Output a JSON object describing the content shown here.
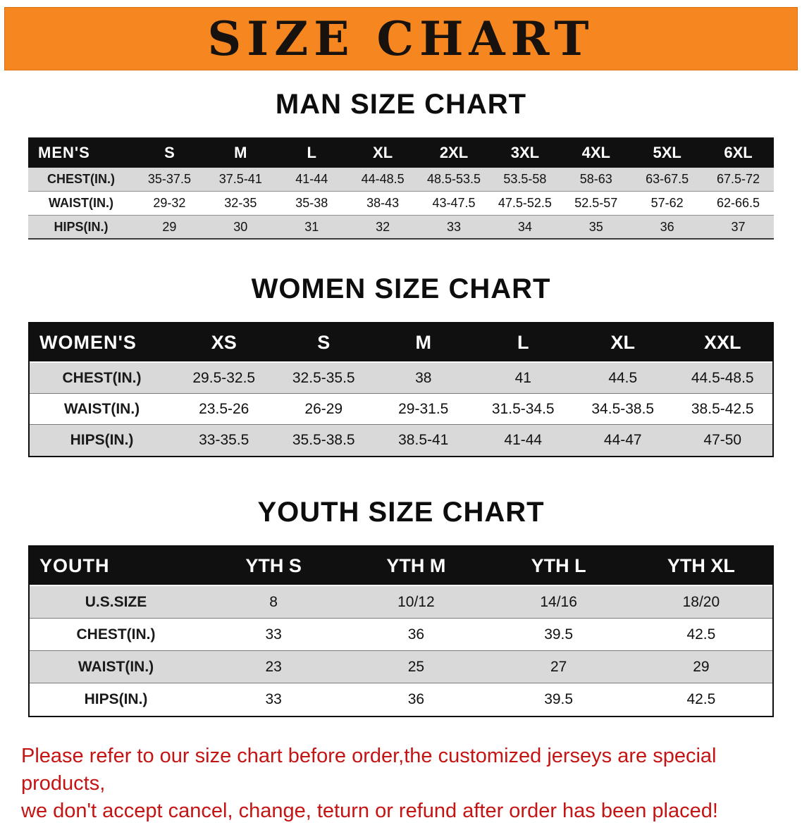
{
  "banner": {
    "title": "SIZE CHART"
  },
  "colors": {
    "banner_bg": "#f6861f",
    "header_bg": "#101010",
    "shade": "#d9d9d9",
    "note_red": "#c51414"
  },
  "men": {
    "heading": "MAN SIZE CHART",
    "table": {
      "header_label": "MEN'S",
      "columns": [
        "S",
        "M",
        "L",
        "XL",
        "2XL",
        "3XL",
        "4XL",
        "5XL",
        "6XL"
      ],
      "rows": [
        {
          "label": "CHEST(IN.)",
          "values": [
            "35-37.5",
            "37.5-41",
            "41-44",
            "44-48.5",
            "48.5-53.5",
            "53.5-58",
            "58-63",
            "63-67.5",
            "67.5-72"
          ]
        },
        {
          "label": "WAIST(IN.)",
          "values": [
            "29-32",
            "32-35",
            "35-38",
            "38-43",
            "43-47.5",
            "47.5-52.5",
            "52.5-57",
            "57-62",
            "62-66.5"
          ]
        },
        {
          "label": "HIPS(IN.)",
          "values": [
            "29",
            "30",
            "31",
            "32",
            "33",
            "34",
            "35",
            "36",
            "37"
          ]
        }
      ]
    }
  },
  "women": {
    "heading": "WOMEN SIZE CHART",
    "table": {
      "header_label": "WOMEN'S",
      "columns": [
        "XS",
        "S",
        "M",
        "L",
        "XL",
        "XXL"
      ],
      "rows": [
        {
          "label": "CHEST(IN.)",
          "values": [
            "29.5-32.5",
            "32.5-35.5",
            "38",
            "41",
            "44.5",
            "44.5-48.5"
          ]
        },
        {
          "label": "WAIST(IN.)",
          "values": [
            "23.5-26",
            "26-29",
            "29-31.5",
            "31.5-34.5",
            "34.5-38.5",
            "38.5-42.5"
          ]
        },
        {
          "label": "HIPS(IN.)",
          "values": [
            "33-35.5",
            "35.5-38.5",
            "38.5-41",
            "41-44",
            "44-47",
            "47-50"
          ]
        }
      ]
    }
  },
  "youth": {
    "heading": "YOUTH SIZE CHART",
    "table": {
      "header_label": "YOUTH",
      "columns": [
        "YTH S",
        "YTH M",
        "YTH L",
        "YTH XL"
      ],
      "rows": [
        {
          "label": "U.S.SIZE",
          "values": [
            "8",
            "10/12",
            "14/16",
            "18/20"
          ]
        },
        {
          "label": "CHEST(IN.)",
          "values": [
            "33",
            "36",
            "39.5",
            "42.5"
          ]
        },
        {
          "label": "WAIST(IN.)",
          "values": [
            "23",
            "25",
            "27",
            "29"
          ]
        },
        {
          "label": "HIPS(IN.)",
          "values": [
            "33",
            "36",
            "39.5",
            "42.5"
          ]
        }
      ]
    }
  },
  "note": {
    "line1": "Please refer to our size chart before order,the customized jerseys are special products,",
    "line2": "we don't accept cancel, change, teturn or refund after order has been placed!"
  }
}
